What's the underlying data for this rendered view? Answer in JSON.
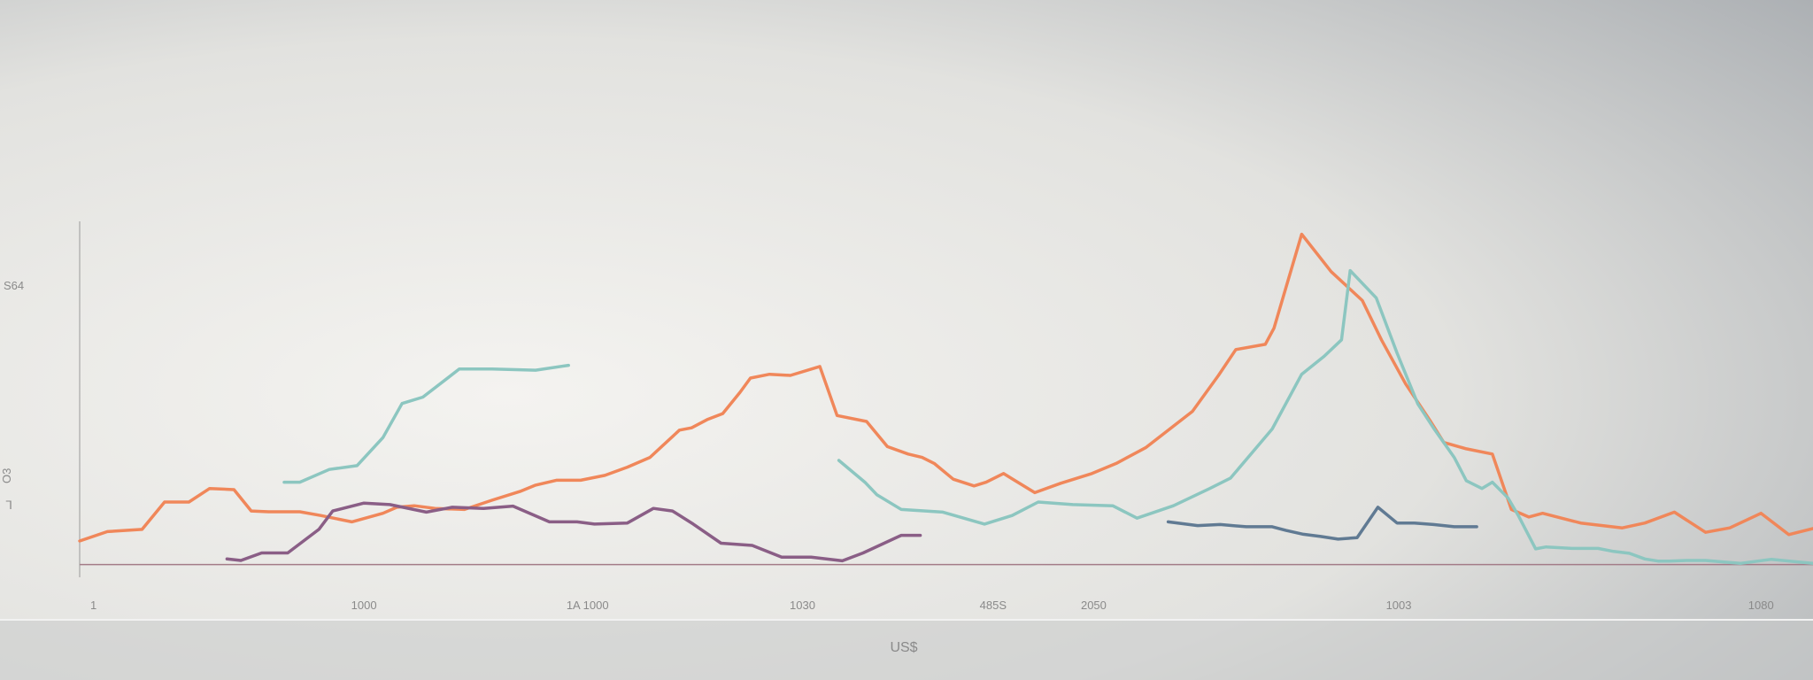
{
  "chart_data": {
    "type": "line",
    "title": "",
    "xlabel": "US$",
    "ylabel": "",
    "xlim": [
      0,
      100
    ],
    "ylim": [
      0,
      100
    ],
    "grid": false,
    "legend": "none",
    "x_ticks": [
      {
        "x": 0.8,
        "label": "1"
      },
      {
        "x": 16.4,
        "label": "1000"
      },
      {
        "x": 29.3,
        "label": "1A 1000"
      },
      {
        "x": 41.7,
        "label": "1030"
      },
      {
        "x": 52.7,
        "label": "485S"
      },
      {
        "x": 58.5,
        "label": "2050"
      },
      {
        "x": 76.1,
        "label": "1003"
      },
      {
        "x": 97.0,
        "label": "1080"
      }
    ],
    "y_ticks": [
      {
        "y": 78,
        "label": "S64"
      },
      {
        "y": 27,
        "label": "O3"
      }
    ],
    "y_marker": "ᒣ",
    "series": [
      {
        "name": "teal-short",
        "color": "#8cc6c0",
        "x": [
          11.8,
          12.7,
          14.4,
          16.0,
          17.5,
          18.6,
          19.8,
          21.9,
          23.8,
          26.3,
          28.2
        ],
        "y": [
          25.4,
          25.4,
          28.8,
          29.8,
          37.3,
          46.4,
          48.1,
          55.6,
          55.6,
          55.3,
          56.6
        ]
      },
      {
        "name": "orange",
        "color": "#f0875a",
        "x": [
          0.0,
          1.6,
          3.6,
          4.9,
          6.3,
          7.5,
          8.9,
          9.9,
          10.9,
          11.8,
          12.7,
          13.9,
          15.7,
          17.5,
          18.3,
          19.3,
          20.5,
          22.2,
          23.8,
          25.4,
          26.3,
          27.5,
          28.9,
          30.3,
          31.6,
          32.9,
          34.6,
          35.3,
          36.2,
          37.1,
          38.1,
          38.7,
          39.8,
          41.0,
          42.7,
          43.7,
          45.4,
          46.6,
          47.8,
          48.6,
          49.3,
          50.4,
          51.6,
          52.3,
          53.3,
          55.1,
          56.6,
          58.4,
          59.8,
          61.5,
          64.2,
          65.7,
          66.7,
          68.4,
          68.9,
          70.5,
          72.2,
          74.0,
          75.1,
          76.5,
          77.9,
          78.7,
          80.0,
          81.5,
          82.6,
          83.6,
          84.4,
          86.6,
          89.0,
          90.3,
          92.0,
          93.8,
          95.2,
          97.0,
          98.6,
          100.0
        ],
        "y": [
          9.7,
          12.2,
          12.8,
          20.1,
          20.1,
          23.7,
          23.4,
          17.7,
          17.5,
          17.5,
          17.5,
          16.5,
          14.8,
          17.1,
          18.7,
          19.1,
          18.4,
          18.1,
          20.6,
          22.9,
          24.6,
          25.9,
          25.9,
          27.2,
          29.4,
          32.0,
          39.3,
          39.9,
          42.1,
          43.7,
          49.4,
          53.2,
          54.2,
          53.9,
          56.3,
          43.2,
          41.6,
          34.9,
          32.9,
          32.0,
          30.4,
          26.2,
          24.4,
          25.4,
          27.7,
          22.6,
          25.1,
          27.7,
          30.4,
          34.6,
          44.3,
          53.9,
          60.8,
          62.2,
          66.5,
          91.6,
          81.6,
          73.9,
          63.4,
          51.6,
          41.9,
          36.0,
          34.3,
          32.9,
          18.1,
          16.1,
          17.1,
          14.5,
          13.2,
          14.5,
          17.4,
          12.0,
          13.2,
          17.1,
          11.4,
          13.0
        ]
      },
      {
        "name": "teal-long",
        "color": "#8cc6c0",
        "x": [
          43.8,
          45.3,
          46.0,
          47.4,
          49.8,
          52.2,
          53.8,
          55.3,
          57.3,
          59.6,
          61.0,
          63.1,
          65.2,
          66.4,
          68.8,
          70.5,
          71.8,
          72.8,
          73.3,
          74.8,
          76.0,
          77.2,
          78.1,
          79.3,
          80.0,
          80.9,
          81.5,
          82.4,
          83.0,
          84.0,
          84.6,
          86.1,
          87.6,
          88.5,
          89.4,
          90.3,
          91.1,
          91.7,
          92.7,
          93.8,
          95.8,
          97.6,
          100.0
        ],
        "y": [
          31.2,
          25.4,
          22.0,
          18.1,
          17.4,
          14.2,
          16.5,
          20.1,
          19.4,
          19.1,
          15.8,
          19.1,
          23.7,
          26.5,
          39.6,
          54.2,
          59.0,
          63.4,
          81.9,
          74.6,
          59.9,
          46.3,
          39.9,
          32.0,
          25.8,
          23.7,
          25.4,
          21.2,
          16.5,
          7.6,
          8.1,
          7.7,
          7.7,
          6.9,
          6.4,
          4.9,
          4.3,
          4.3,
          4.5,
          4.5,
          3.7,
          4.8,
          3.7
        ]
      },
      {
        "name": "purple",
        "color": "#8a5e86",
        "x": [
          8.5,
          9.3,
          10.5,
          12.0,
          13.8,
          14.6,
          16.4,
          17.9,
          20.0,
          21.5,
          23.3,
          25.0,
          27.1,
          28.7,
          29.7,
          31.6,
          33.1,
          34.2,
          35.4,
          37.0,
          38.8,
          40.5,
          42.2,
          44.0,
          45.2,
          47.4,
          48.5
        ],
        "y": [
          4.9,
          4.5,
          6.5,
          6.5,
          12.8,
          17.7,
          19.8,
          19.4,
          17.4,
          18.7,
          18.4,
          19.0,
          14.8,
          14.8,
          14.2,
          14.5,
          18.4,
          17.7,
          14.2,
          9.1,
          8.5,
          5.4,
          5.4,
          4.4,
          6.5,
          11.2,
          11.2
        ]
      },
      {
        "name": "slate",
        "color": "#607a93",
        "x": [
          62.8,
          64.5,
          65.8,
          67.3,
          68.8,
          69.6,
          70.6,
          71.6,
          72.6,
          73.7,
          74.9,
          76.0,
          77.0,
          78.1,
          79.3,
          80.6
        ],
        "y": [
          14.8,
          13.8,
          14.1,
          13.5,
          13.5,
          12.5,
          11.5,
          10.9,
          10.2,
          10.6,
          18.7,
          14.5,
          14.5,
          14.1,
          13.5,
          13.5
        ]
      }
    ],
    "baseline": {
      "name": "axis-baseline",
      "color": "#a37c88",
      "y": 3.4
    }
  }
}
